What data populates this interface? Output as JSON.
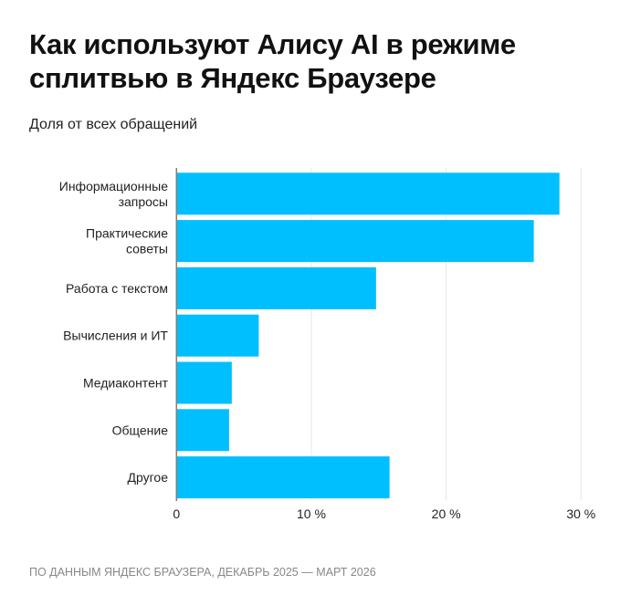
{
  "title": "Как используют Алису AI в режиме сплитвью в Яндекс Браузере",
  "subtitle": "Доля от всех обращений",
  "footer": "По данным Яндекс Браузера, декабрь 2025 — март 2026",
  "chart_data": {
    "type": "bar",
    "orientation": "horizontal",
    "categories": [
      [
        "Информационные",
        "запросы"
      ],
      [
        "Практические",
        "советы"
      ],
      [
        "Работа с текстом"
      ],
      [
        "Вычисления и ИТ"
      ],
      [
        "Медиаконтент"
      ],
      [
        "Общение"
      ],
      [
        "Другое"
      ]
    ],
    "values": [
      28.4,
      26.5,
      14.8,
      6.1,
      4.1,
      3.9,
      15.8
    ],
    "xlim": [
      0,
      30
    ],
    "xticks": [
      0,
      10,
      20,
      30
    ],
    "xtick_labels": [
      "0",
      "10 %",
      "20 %",
      "30 %"
    ],
    "unit": "%",
    "grid": "vertical",
    "bar_color": "#00BFFF",
    "axis_color": "#8a7a70",
    "grid_color": "#e6e6e6"
  }
}
